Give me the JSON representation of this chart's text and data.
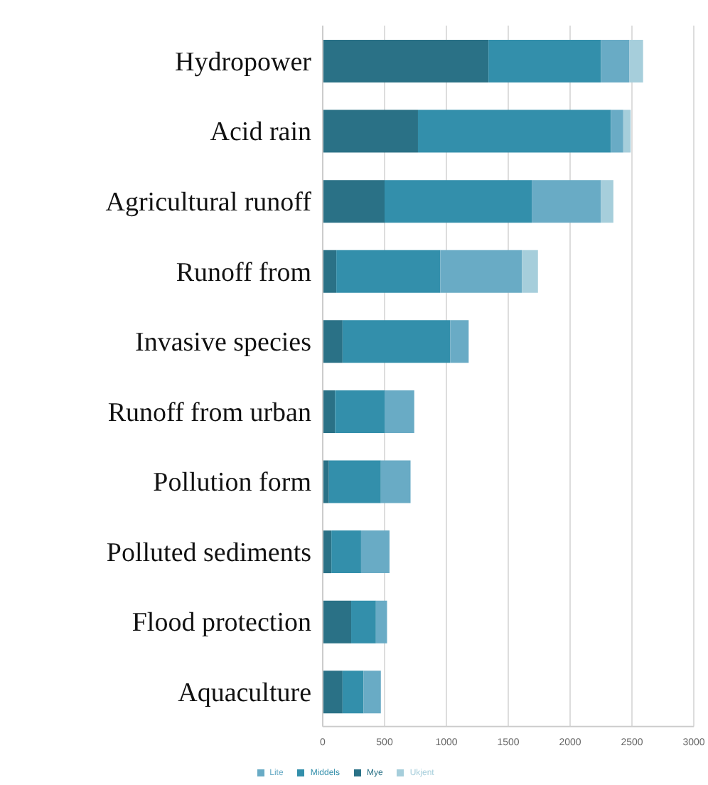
{
  "chart_data": {
    "type": "bar",
    "orientation": "horizontal",
    "stacked": true,
    "categories": [
      "Hydropower",
      "Acid rain",
      "Agricultural runoff",
      "Runoff from",
      "Invasive species",
      "Runoff from urban",
      "Pollution form",
      "Polluted sediments",
      "Flood protection",
      "Aquaculture"
    ],
    "series": [
      {
        "name": "Mye",
        "color": "#2a7186",
        "values": [
          1340,
          770,
          500,
          110,
          160,
          100,
          50,
          70,
          230,
          160
        ]
      },
      {
        "name": "Middels",
        "color": "#338fab",
        "values": [
          910,
          1560,
          1190,
          840,
          870,
          400,
          420,
          240,
          200,
          170
        ]
      },
      {
        "name": "Lite",
        "color": "#69abc5",
        "values": [
          230,
          100,
          560,
          660,
          150,
          240,
          240,
          230,
          90,
          140
        ]
      },
      {
        "name": "Ukjent",
        "color": "#a6cedb",
        "values": [
          110,
          60,
          100,
          130,
          0,
          0,
          0,
          0,
          0,
          0
        ]
      }
    ],
    "xlim": [
      0,
      3000
    ],
    "xticks": [
      0,
      500,
      1000,
      1500,
      2000,
      2500,
      3000
    ],
    "grid": "x",
    "legend": "bottom"
  }
}
